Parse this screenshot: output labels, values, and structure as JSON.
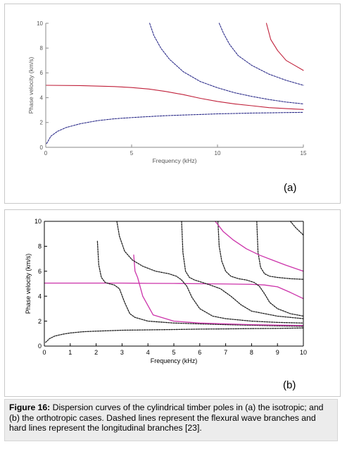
{
  "chart_data": [
    {
      "type": "line",
      "xlabel": "Frequency (kHz)",
      "ylabel": "Phase velocity (km/s)",
      "xlim": [
        0,
        15
      ],
      "ylim": [
        0,
        10
      ],
      "xticks": [
        0,
        5,
        10,
        15
      ],
      "yticks": [
        0,
        2,
        4,
        6,
        8,
        10
      ],
      "grid": false,
      "panel_label": "(a)",
      "series": [
        {
          "style": "dashed",
          "color": "#2d2d8a",
          "x": [
            0.05,
            0.3,
            0.7,
            1.2,
            2,
            3,
            4,
            5,
            6,
            7,
            8,
            9,
            10,
            11,
            12,
            13,
            14,
            15
          ],
          "y": [
            0.3,
            0.9,
            1.3,
            1.6,
            1.9,
            2.15,
            2.3,
            2.4,
            2.48,
            2.55,
            2.6,
            2.65,
            2.7,
            2.73,
            2.76,
            2.78,
            2.8,
            2.82
          ]
        },
        {
          "style": "solid",
          "color": "#c0203a",
          "x": [
            0,
            2,
            4,
            5,
            6,
            7,
            8,
            9,
            10,
            11,
            12,
            13,
            14,
            15
          ],
          "y": [
            5.0,
            4.98,
            4.9,
            4.82,
            4.7,
            4.5,
            4.25,
            3.95,
            3.7,
            3.5,
            3.35,
            3.2,
            3.12,
            3.05
          ]
        },
        {
          "style": "dashed",
          "color": "#2d2d8a",
          "x": [
            6.05,
            6.3,
            6.7,
            7.2,
            8,
            9,
            10,
            11,
            12,
            13,
            14,
            15
          ],
          "y": [
            10,
            9.0,
            8.0,
            7.1,
            6.1,
            5.3,
            4.8,
            4.4,
            4.1,
            3.85,
            3.65,
            3.5
          ]
        },
        {
          "style": "dashed",
          "color": "#2d2d8a",
          "x": [
            10.1,
            10.35,
            10.7,
            11.2,
            12,
            13,
            14,
            15
          ],
          "y": [
            10,
            9.2,
            8.3,
            7.4,
            6.6,
            5.9,
            5.4,
            5.0
          ]
        },
        {
          "style": "solid",
          "color": "#c0203a",
          "x": [
            12.85,
            13.1,
            13.5,
            14,
            14.5,
            15
          ],
          "y": [
            10,
            8.7,
            7.8,
            7.0,
            6.6,
            6.2
          ]
        }
      ]
    },
    {
      "type": "line",
      "xlabel": "Frequency (kHz)",
      "ylabel": "Phase velocity (km/s)",
      "xlim": [
        0,
        10
      ],
      "ylim": [
        0,
        10
      ],
      "xticks": [
        0,
        1,
        2,
        3,
        4,
        5,
        6,
        7,
        8,
        9,
        10
      ],
      "yticks": [
        0,
        2,
        4,
        6,
        8,
        10
      ],
      "grid": false,
      "panel_label": "(b)",
      "series": [
        {
          "style": "dashed",
          "color": "#222222",
          "x": [
            0.05,
            0.2,
            0.4,
            0.7,
            1,
            1.5,
            2,
            3,
            4,
            5,
            6,
            7,
            8,
            9,
            10
          ],
          "y": [
            0.3,
            0.6,
            0.8,
            0.95,
            1.05,
            1.15,
            1.2,
            1.27,
            1.3,
            1.33,
            1.36,
            1.38,
            1.4,
            1.42,
            1.45
          ]
        },
        {
          "style": "solid",
          "color": "#cc33aa",
          "x": [
            0,
            1,
            2,
            3,
            3.5,
            4,
            5,
            6,
            7,
            8,
            8.5,
            9,
            9.5,
            10
          ],
          "y": [
            5.05,
            5.05,
            5.05,
            5.05,
            5.04,
            5.03,
            5.02,
            5.0,
            4.98,
            4.95,
            4.9,
            4.75,
            4.3,
            3.8
          ]
        },
        {
          "style": "dashed",
          "color": "#222222",
          "x": [
            2.05,
            2.1,
            2.2,
            2.35,
            2.5,
            2.7,
            2.9,
            3.1,
            3.3,
            3.5,
            4,
            5,
            6,
            7,
            8,
            9,
            10
          ],
          "y": [
            8.4,
            6.5,
            5.5,
            5.1,
            5.0,
            4.9,
            4.6,
            3.5,
            2.6,
            2.3,
            2.0,
            1.85,
            1.78,
            1.72,
            1.67,
            1.62,
            1.58
          ]
        },
        {
          "style": "solid",
          "color": "#cc33aa",
          "x": [
            3.45,
            3.5,
            3.6,
            3.8,
            4.2,
            5,
            6,
            7,
            8,
            9,
            10
          ],
          "y": [
            7.3,
            6.0,
            5.5,
            4.0,
            2.5,
            2.0,
            1.85,
            1.78,
            1.72,
            1.68,
            1.65
          ]
        },
        {
          "style": "dashed",
          "color": "#222222",
          "x": [
            2.8,
            2.9,
            3.1,
            3.4,
            3.8,
            4.3,
            4.8,
            5.1,
            5.3,
            5.5,
            5.7,
            6,
            6.5,
            7,
            8,
            9,
            10
          ],
          "y": [
            10,
            8.8,
            7.6,
            6.9,
            6.4,
            6.0,
            5.8,
            5.6,
            5.3,
            4.8,
            3.9,
            3.0,
            2.4,
            2.2,
            2.0,
            1.9,
            1.85
          ]
        },
        {
          "style": "dashed",
          "color": "#222222",
          "x": [
            5.3,
            5.35,
            5.45,
            5.6,
            5.8,
            6.1,
            6.4,
            6.8,
            7.2,
            7.6,
            8,
            9,
            10
          ],
          "y": [
            10,
            7.5,
            6.0,
            5.5,
            5.3,
            5.1,
            4.9,
            4.6,
            4.0,
            3.3,
            2.8,
            2.4,
            2.2
          ]
        },
        {
          "style": "dashed",
          "color": "#222222",
          "x": [
            6.7,
            6.75,
            6.85,
            7.0,
            7.2,
            7.5,
            7.8,
            8.1,
            8.3,
            8.5,
            8.7,
            9,
            9.5,
            10
          ],
          "y": [
            10,
            8.0,
            6.8,
            6.0,
            5.6,
            5.4,
            5.3,
            5.1,
            4.8,
            4.2,
            3.5,
            3.0,
            2.6,
            2.4
          ]
        },
        {
          "style": "dashed",
          "color": "#222222",
          "x": [
            8.2,
            8.25,
            8.35,
            8.5,
            8.7,
            9,
            9.5,
            10
          ],
          "y": [
            10,
            7.5,
            6.3,
            5.8,
            5.6,
            5.5,
            5.4,
            5.35
          ]
        },
        {
          "style": "solid",
          "color": "#cc33aa",
          "x": [
            6.6,
            6.9,
            7.3,
            7.8,
            8.3,
            8.8,
            9.3,
            10
          ],
          "y": [
            10,
            9.2,
            8.5,
            7.8,
            7.3,
            6.9,
            6.5,
            6.0
          ]
        },
        {
          "style": "dashed",
          "color": "#222222",
          "x": [
            9.5,
            9.7,
            10
          ],
          "y": [
            10,
            9.5,
            8.9
          ]
        }
      ]
    }
  ],
  "caption": {
    "label": "Figure 16:",
    "text": " Dispersion curves of the cylindrical timber poles in (a) the isotropic; and (b) the orthotropic cases. Dashed lines represent the flexural wave branches and hard lines represent the longitudinal branches [23]."
  }
}
